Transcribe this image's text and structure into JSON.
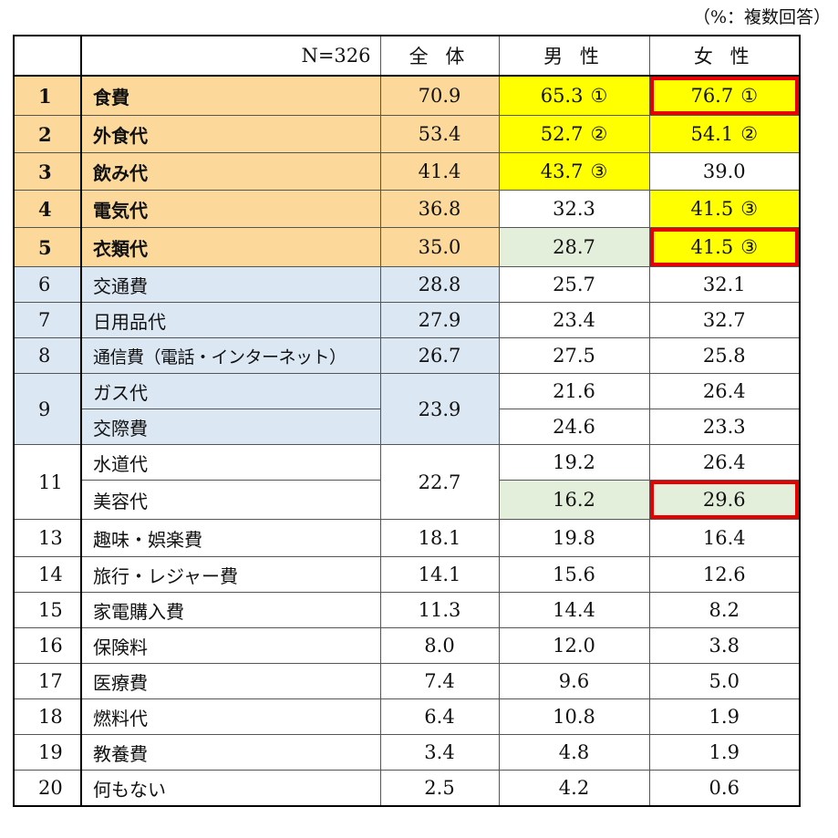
{
  "note": "（%：複数回答）",
  "header": {
    "n": "N=326",
    "total": "全 体",
    "male": "男 性",
    "female": "女 性"
  },
  "rows": [
    {
      "rank": "1",
      "item": "食費",
      "total": "70.9",
      "male": "65.3",
      "male_mark": "①",
      "female": "76.7",
      "female_mark": "①"
    },
    {
      "rank": "2",
      "item": "外食代",
      "total": "53.4",
      "male": "52.7",
      "male_mark": "②",
      "female": "54.1",
      "female_mark": "②"
    },
    {
      "rank": "3",
      "item": "飲み代",
      "total": "41.4",
      "male": "43.7",
      "male_mark": "③",
      "female": "39.0"
    },
    {
      "rank": "4",
      "item": "電気代",
      "total": "36.8",
      "male": "32.3",
      "female": "41.5",
      "female_mark": "③"
    },
    {
      "rank": "5",
      "item": "衣類代",
      "total": "35.0",
      "male": "28.7",
      "female": "41.5",
      "female_mark": "③"
    },
    {
      "rank": "6",
      "item": "交通費",
      "total": "28.8",
      "male": "25.7",
      "female": "32.1"
    },
    {
      "rank": "7",
      "item": "日用品代",
      "total": "27.9",
      "male": "23.4",
      "female": "32.7"
    },
    {
      "rank": "8",
      "item": "通信費（電話・インターネット）",
      "total": "26.7",
      "male": "27.5",
      "female": "25.8"
    },
    {
      "rank": "9",
      "item": "ガス代",
      "total": "23.9",
      "male": "21.6",
      "female": "26.4"
    },
    {
      "item": "交際費",
      "male": "24.6",
      "female": "23.3"
    },
    {
      "rank": "11",
      "item": "水道代",
      "total": "22.7",
      "male": "19.2",
      "female": "26.4"
    },
    {
      "item": "美容代",
      "male": "16.2",
      "female": "29.6"
    },
    {
      "rank": "13",
      "item": "趣味・娯楽費",
      "total": "18.1",
      "male": "19.8",
      "female": "16.4"
    },
    {
      "rank": "14",
      "item": "旅行・レジャー費",
      "total": "14.1",
      "male": "15.6",
      "female": "12.6"
    },
    {
      "rank": "15",
      "item": "家電購入費",
      "total": "11.3",
      "male": "14.4",
      "female": "8.2"
    },
    {
      "rank": "16",
      "item": "保険料",
      "total": "8.0",
      "male": "12.0",
      "female": "3.8"
    },
    {
      "rank": "17",
      "item": "医療費",
      "total": "7.4",
      "male": "9.6",
      "female": "5.0"
    },
    {
      "rank": "18",
      "item": "燃料代",
      "total": "6.4",
      "male": "10.8",
      "female": "1.9"
    },
    {
      "rank": "19",
      "item": "教養費",
      "total": "3.4",
      "male": "4.8",
      "female": "1.9"
    },
    {
      "rank": "20",
      "item": "何もない",
      "total": "2.5",
      "male": "4.2",
      "female": "0.6"
    }
  ]
}
